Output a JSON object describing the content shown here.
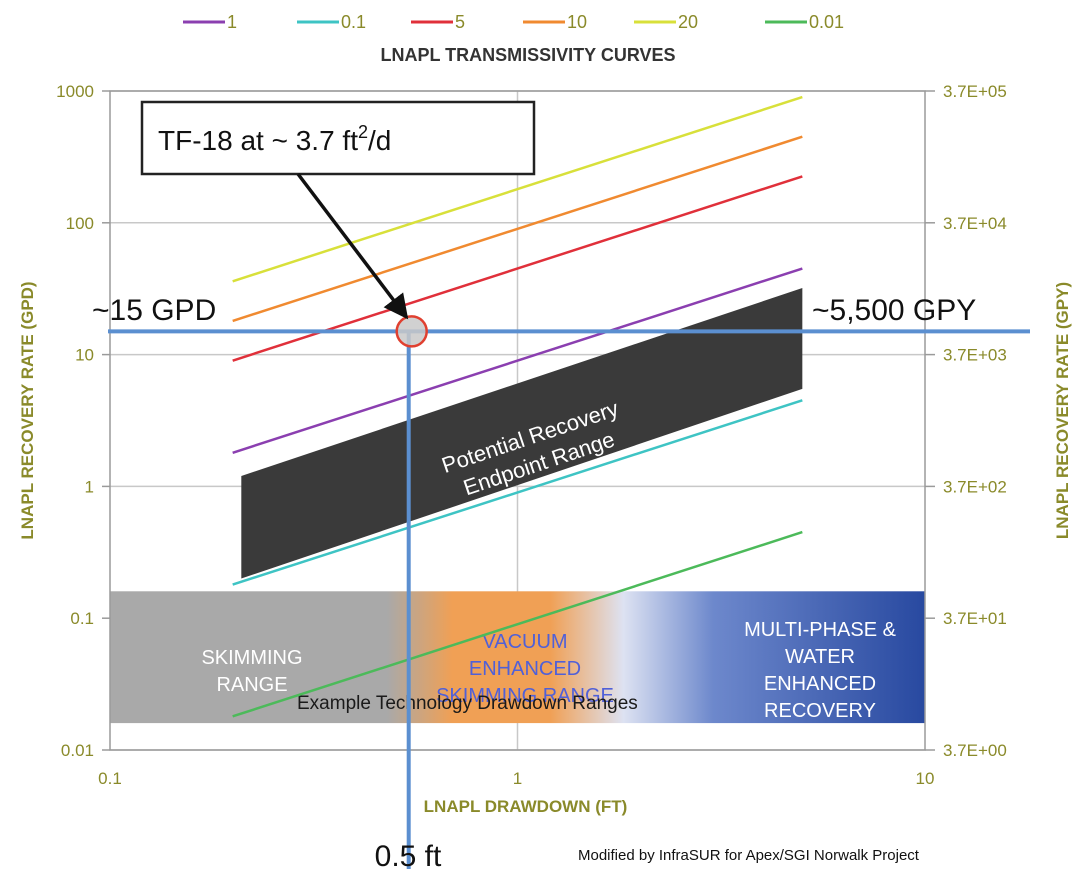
{
  "chart_data": {
    "type": "line",
    "legend_title": "LNAPL TRANSMISSIVITY CURVES",
    "legend_placement": "top",
    "xlabel": "LNAPL DRAWDOWN (FT)",
    "ylabel": "LNAPL RECOVERY RATE (GPD)",
    "y2label": "LNAPL RECOVERY RATE (GPY)",
    "xscale": "log",
    "yscale": "log",
    "xlim": [
      0.1,
      10
    ],
    "ylim": [
      0.01,
      1000
    ],
    "grid": true,
    "x_ticks": [
      "0.1",
      "1",
      "10"
    ],
    "y_ticks": [
      "0.01",
      "0.1",
      "1",
      "10",
      "100",
      "1000"
    ],
    "y2_ticks": [
      "3.7E+00",
      "3.7E+01",
      "3.7E+02",
      "3.7E+03",
      "3.7E+04",
      "3.7E+05"
    ],
    "series": [
      {
        "name": "1",
        "color": "#8b3fb0",
        "x": [
          0.2,
          5
        ],
        "y": [
          1.8,
          45
        ]
      },
      {
        "name": "0.1",
        "color": "#3ec4c4",
        "x": [
          0.2,
          5
        ],
        "y": [
          0.18,
          4.5
        ]
      },
      {
        "name": "5",
        "color": "#e0303a",
        "x": [
          0.2,
          5
        ],
        "y": [
          9,
          225
        ]
      },
      {
        "name": "10",
        "color": "#f08a30",
        "x": [
          0.2,
          5
        ],
        "y": [
          18,
          450
        ]
      },
      {
        "name": "20",
        "color": "#d8e03a",
        "x": [
          0.2,
          5
        ],
        "y": [
          36,
          900
        ]
      },
      {
        "name": "0.01",
        "color": "#4cba5a",
        "x": [
          0.2,
          5
        ],
        "y": [
          0.018,
          0.45
        ]
      }
    ],
    "band": {
      "label_line1": "Potential Recovery",
      "label_line2": "Endpoint Range",
      "color": "#3a3a3a",
      "x": [
        0.21,
        5
      ],
      "y_low": [
        0.2,
        5.5
      ],
      "y_high": [
        1.2,
        32
      ]
    },
    "technology_ranges": {
      "label": "Example Technology Drawdown Ranges",
      "skimming": [
        "SKIMMING",
        "RANGE"
      ],
      "vacuum": [
        "VACUUM",
        "ENHANCED",
        "SKIMMING RANGE"
      ],
      "multiphase": [
        "MULTI-PHASE &",
        "WATER",
        "ENHANCED",
        "RECOVERY"
      ]
    },
    "annotations": {
      "callout": "TF-18 at ~ 3.7 ft",
      "callout_sup": "2",
      "callout_tail": "/d",
      "rate_gpd": "~15 GPD",
      "rate_gpy": "~5,500 GPY",
      "drawdown": "0.5 ft",
      "point_x": 0.55,
      "point_y": 15,
      "credit": "Modified by InfraSUR for Apex/SGI Norwalk Project"
    },
    "colors": {
      "marker_line": "#5b8fd0",
      "axis_text": "#8a8a2a",
      "grid": "#c8c8c8"
    }
  }
}
